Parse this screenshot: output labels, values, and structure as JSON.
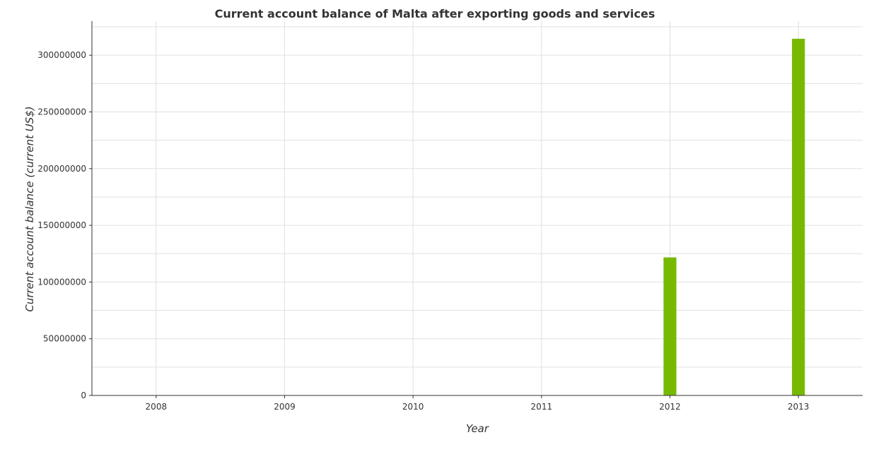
{
  "chart_data": {
    "type": "bar",
    "title": "Current account balance of Malta after exporting goods and services",
    "xlabel": "Year",
    "ylabel": "Current account balance (current US$)",
    "categories": [
      "2008",
      "2009",
      "2010",
      "2011",
      "2012",
      "2013"
    ],
    "series": [
      {
        "values": [
          0,
          0,
          0,
          0,
          121700000,
          314500000
        ],
        "color": "#76b900"
      }
    ],
    "ylim": [
      0,
      330000000
    ],
    "yticks": [
      0,
      50000000,
      100000000,
      150000000,
      200000000,
      250000000,
      300000000
    ],
    "ytick_labels": [
      "0",
      "50000000",
      "100000000",
      "150000000",
      "200000000",
      "250000000",
      "300000000"
    ],
    "grid": true
  }
}
